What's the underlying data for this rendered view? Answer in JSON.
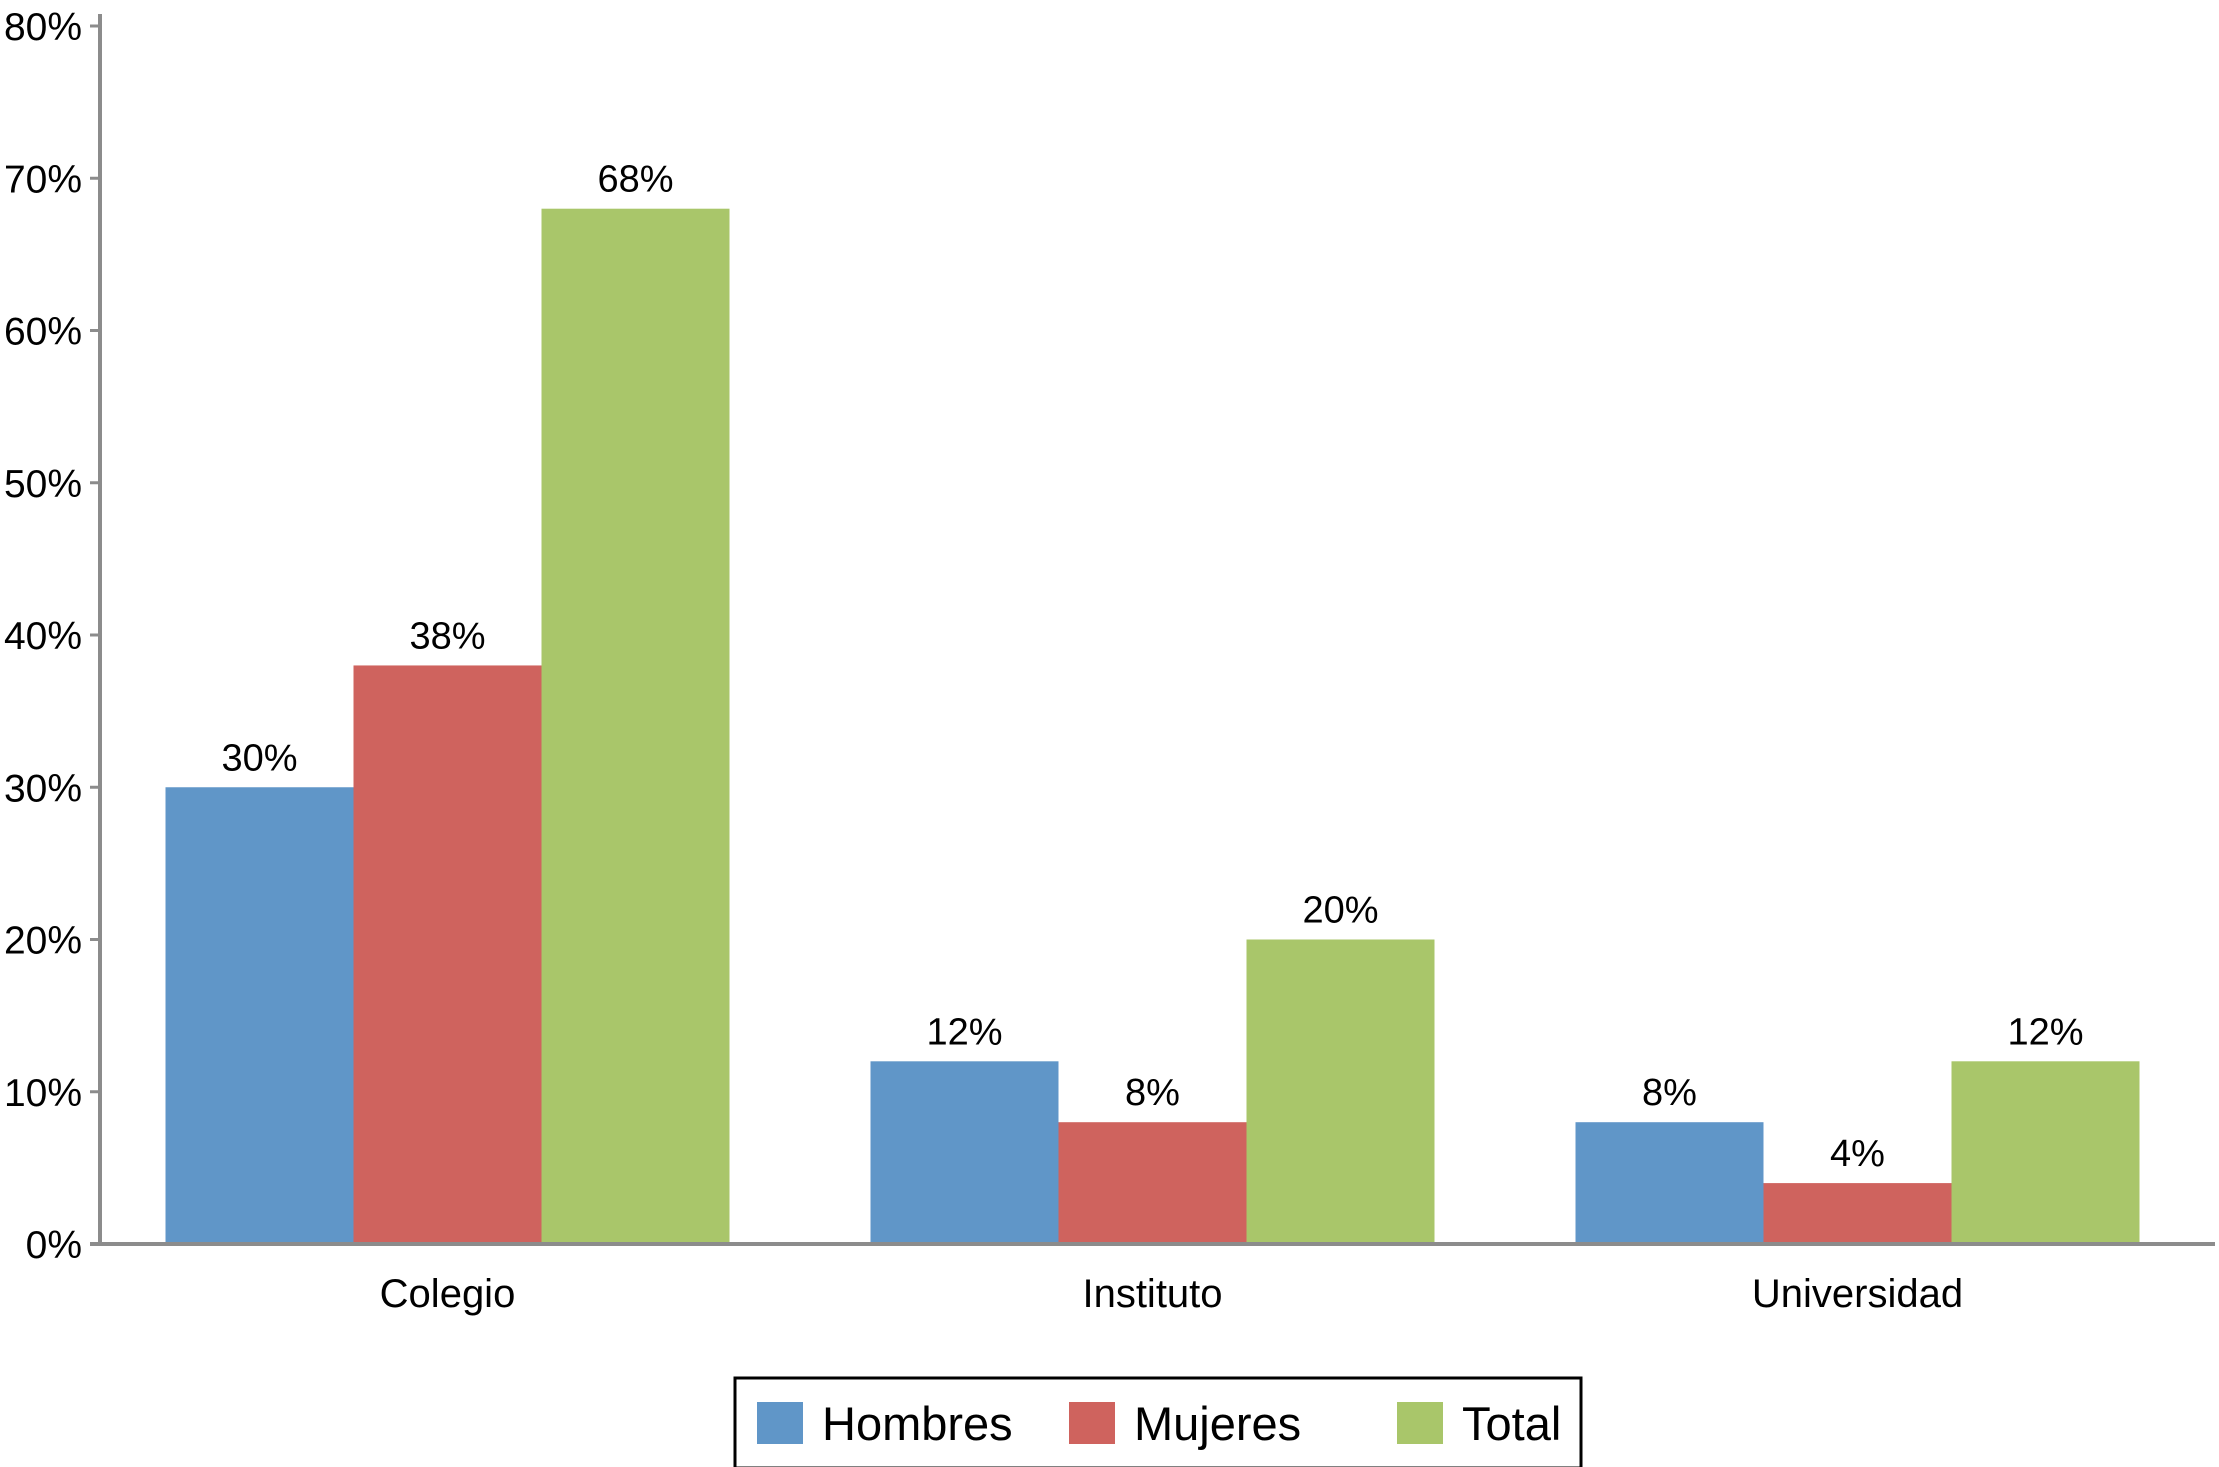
{
  "chart_data": {
    "type": "bar",
    "categories": [
      "Colegio",
      "Instituto",
      "Universidad"
    ],
    "series": [
      {
        "name": "Hombres",
        "values": [
          30,
          12,
          8
        ],
        "labels": [
          "30%",
          "12%",
          "8%"
        ],
        "color": "#6096C8"
      },
      {
        "name": "Mujeres",
        "values": [
          38,
          8,
          4
        ],
        "labels": [
          "38%",
          "8%",
          "4%"
        ],
        "color": "#CF635E"
      },
      {
        "name": "Total",
        "values": [
          68,
          20,
          12
        ],
        "labels": [
          "68%",
          "20%",
          "12%"
        ],
        "color": "#A9C66A"
      }
    ],
    "ylim": [
      0,
      80
    ],
    "yticks": [
      0,
      10,
      20,
      30,
      40,
      50,
      60,
      70,
      80
    ],
    "ytick_labels": [
      "0%",
      "10%",
      "20%",
      "30%",
      "40%",
      "50%",
      "60%",
      "70%",
      "80%"
    ],
    "title": "",
    "xlabel": "",
    "ylabel": "",
    "grid": false,
    "legend_position": "bottom-center",
    "axis_color": "#8C8C8C"
  }
}
